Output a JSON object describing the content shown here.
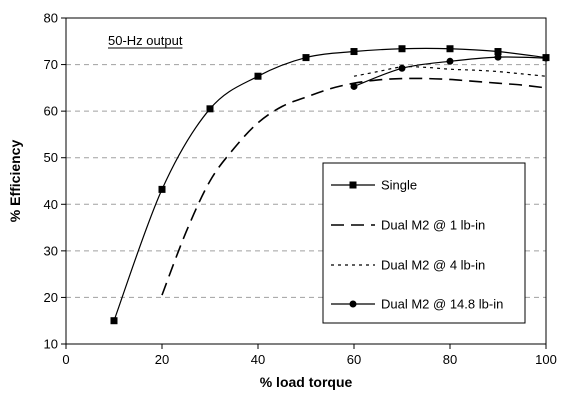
{
  "chart_data": {
    "type": "line",
    "title": "",
    "xlabel": "% load torque",
    "ylabel": "% Efficiency",
    "xlim": [
      0,
      100
    ],
    "ylim": [
      10,
      80
    ],
    "xticks": [
      0,
      20,
      40,
      60,
      80,
      100
    ],
    "yticks": [
      10,
      20,
      30,
      40,
      50,
      60,
      70,
      80
    ],
    "grid": "horizontal dashed",
    "legend_position": "bottom-right",
    "annotation": "50-Hz output",
    "series": [
      {
        "name": "Single",
        "style": "solid",
        "marker": "square",
        "color": "#000000",
        "x": [
          10,
          20,
          30,
          40,
          50,
          60,
          70,
          80,
          90,
          100
        ],
        "y": [
          15,
          43.2,
          60.5,
          67.5,
          71.5,
          72.8,
          73.4,
          73.4,
          72.8,
          71.5
        ]
      },
      {
        "name": "Dual M2 @ 1 lb-in",
        "style": "long-dash",
        "marker": "none",
        "color": "#000000",
        "x": [
          20,
          25,
          30,
          35,
          40,
          45,
          50,
          55,
          60,
          65,
          70,
          75,
          80,
          85,
          90,
          95,
          100
        ],
        "y": [
          20.5,
          34,
          45,
          52,
          57.5,
          61,
          63,
          64.8,
          66,
          66.7,
          67,
          67,
          66.8,
          66.4,
          66,
          65.6,
          65
        ]
      },
      {
        "name": "Dual M2 @ 4 lb-in",
        "style": "dotted",
        "marker": "none",
        "color": "#000000",
        "x": [
          60,
          65,
          70,
          75,
          80,
          85,
          90,
          95,
          100
        ],
        "y": [
          67.5,
          68.5,
          69.5,
          69.4,
          69,
          68.8,
          68.5,
          68,
          67.5
        ]
      },
      {
        "name": "Dual M2 @ 14.8 lb-in",
        "style": "solid",
        "marker": "circle",
        "color": "#000000",
        "x": [
          60,
          70,
          80,
          90,
          100
        ],
        "y": [
          65.3,
          69.2,
          70.7,
          71.6,
          71.4
        ]
      }
    ]
  }
}
